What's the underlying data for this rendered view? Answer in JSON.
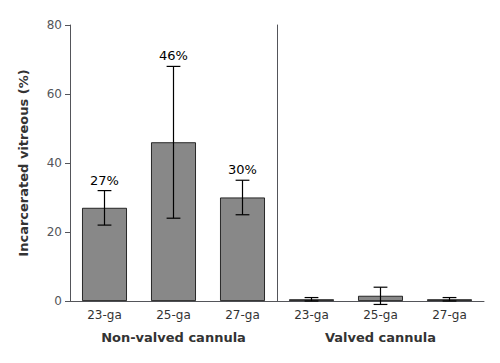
{
  "chart_data": {
    "type": "bar",
    "ylabel": "Incarcerated vitreous (%)",
    "color": "#888888",
    "groups": [
      {
        "name": "Non-valved cannula",
        "categories": [
          "23-ga",
          "25-ga",
          "27-ga"
        ],
        "values": [
          27,
          46,
          30
        ],
        "errors": [
          5,
          22,
          5
        ],
        "value_labels": [
          "27%",
          "46%",
          "30%"
        ]
      },
      {
        "name": "Valved cannula",
        "categories": [
          "23-ga",
          "25-ga",
          "27-ga"
        ],
        "values": [
          0.5,
          1.5,
          0.5
        ],
        "errors": [
          0.5,
          2.5,
          0.5
        ],
        "value_labels": [
          null,
          null,
          null
        ]
      }
    ],
    "ylim": [
      0,
      80
    ],
    "yticks": [
      0,
      20,
      40,
      60,
      80
    ],
    "grid": false
  }
}
